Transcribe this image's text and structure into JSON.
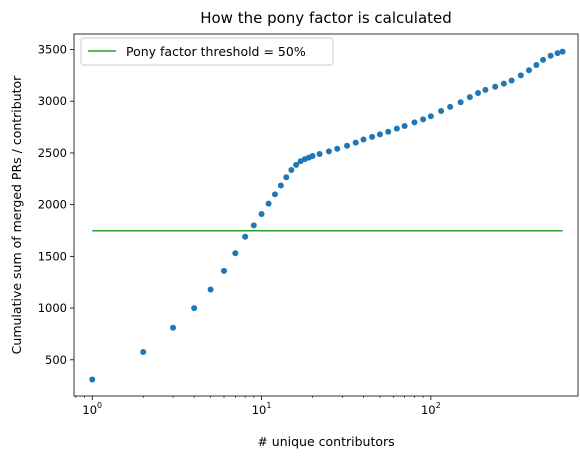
{
  "chart_data": {
    "type": "scatter",
    "title": "How the pony factor is calculated",
    "xlabel": "# unique contributors",
    "ylabel": "Cumulative sum of merged PRs / contributor",
    "x_scale": "log",
    "xlim": [
      0.78,
      740
    ],
    "ylim": [
      150,
      3650
    ],
    "x_ticks": [
      {
        "value": 1,
        "base": "10",
        "exp": "0"
      },
      {
        "value": 10,
        "base": "10",
        "exp": "1"
      },
      {
        "value": 100,
        "base": "10",
        "exp": "2"
      }
    ],
    "y_ticks": [
      500,
      1000,
      1500,
      2000,
      2500,
      3000,
      3500
    ],
    "grid": false,
    "legend_position": "top-left",
    "colors": {
      "points": "#1f77b4",
      "threshold": "#2ca02c"
    },
    "threshold": {
      "name": "Pony factor threshold = 50%",
      "y": 1748,
      "x_range": [
        1,
        600
      ]
    },
    "series": [
      {
        "points": [
          [
            1,
            310
          ],
          [
            2,
            575
          ],
          [
            3,
            810
          ],
          [
            4,
            1000
          ],
          [
            5,
            1180
          ],
          [
            6,
            1360
          ],
          [
            7,
            1530
          ],
          [
            8,
            1690
          ],
          [
            9,
            1800
          ],
          [
            10,
            1910
          ],
          [
            11,
            2010
          ],
          [
            12,
            2100
          ],
          [
            13,
            2185
          ],
          [
            14,
            2265
          ],
          [
            15,
            2335
          ],
          [
            16,
            2385
          ],
          [
            17,
            2420
          ],
          [
            18,
            2440
          ],
          [
            19,
            2455
          ],
          [
            20,
            2470
          ],
          [
            22,
            2490
          ],
          [
            25,
            2515
          ],
          [
            28,
            2540
          ],
          [
            32,
            2570
          ],
          [
            36,
            2600
          ],
          [
            40,
            2630
          ],
          [
            45,
            2655
          ],
          [
            50,
            2680
          ],
          [
            56,
            2705
          ],
          [
            63,
            2735
          ],
          [
            70,
            2760
          ],
          [
            80,
            2795
          ],
          [
            90,
            2825
          ],
          [
            100,
            2855
          ],
          [
            115,
            2905
          ],
          [
            130,
            2945
          ],
          [
            150,
            2990
          ],
          [
            170,
            3040
          ],
          [
            190,
            3080
          ],
          [
            210,
            3110
          ],
          [
            240,
            3140
          ],
          [
            270,
            3170
          ],
          [
            300,
            3200
          ],
          [
            340,
            3250
          ],
          [
            380,
            3300
          ],
          [
            420,
            3350
          ],
          [
            460,
            3400
          ],
          [
            510,
            3440
          ],
          [
            560,
            3465
          ],
          [
            600,
            3480
          ]
        ]
      }
    ]
  }
}
